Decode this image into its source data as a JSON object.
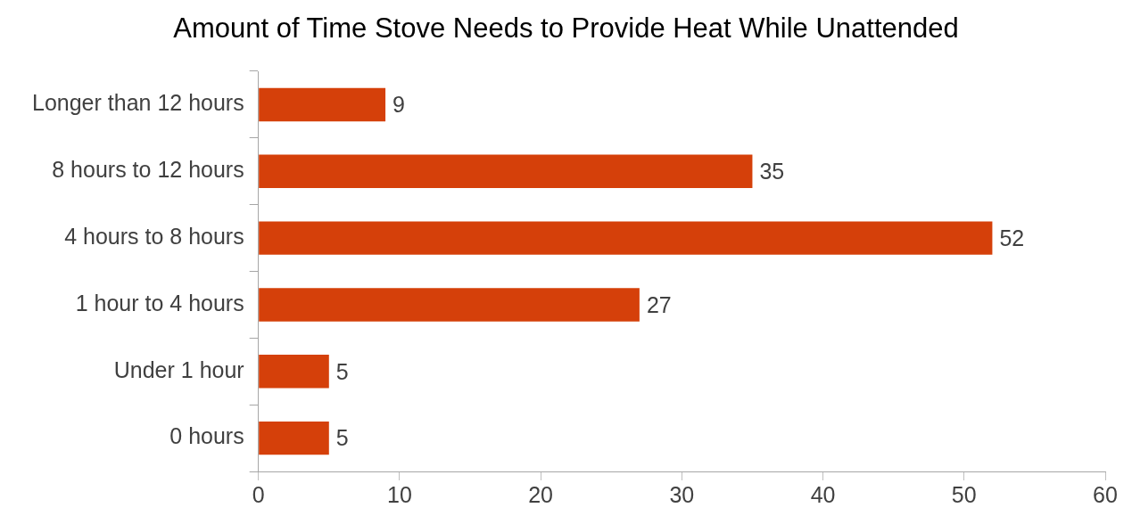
{
  "chart_data": {
    "type": "bar",
    "orientation": "horizontal",
    "title": "Amount of Time Stove Needs to Provide Heat While Unattended",
    "categories": [
      "Longer than 12 hours",
      "8 hours to 12 hours",
      "4 hours to 8 hours",
      "1 hour to 4 hours",
      "Under 1 hour",
      "0 hours"
    ],
    "values": [
      9,
      35,
      52,
      27,
      5,
      5
    ],
    "color": "#d5400a",
    "xlim": [
      0,
      60
    ],
    "xticks": [
      0,
      10,
      20,
      30,
      40,
      50,
      60
    ],
    "grid": false,
    "legend": false,
    "data_labels": true
  }
}
